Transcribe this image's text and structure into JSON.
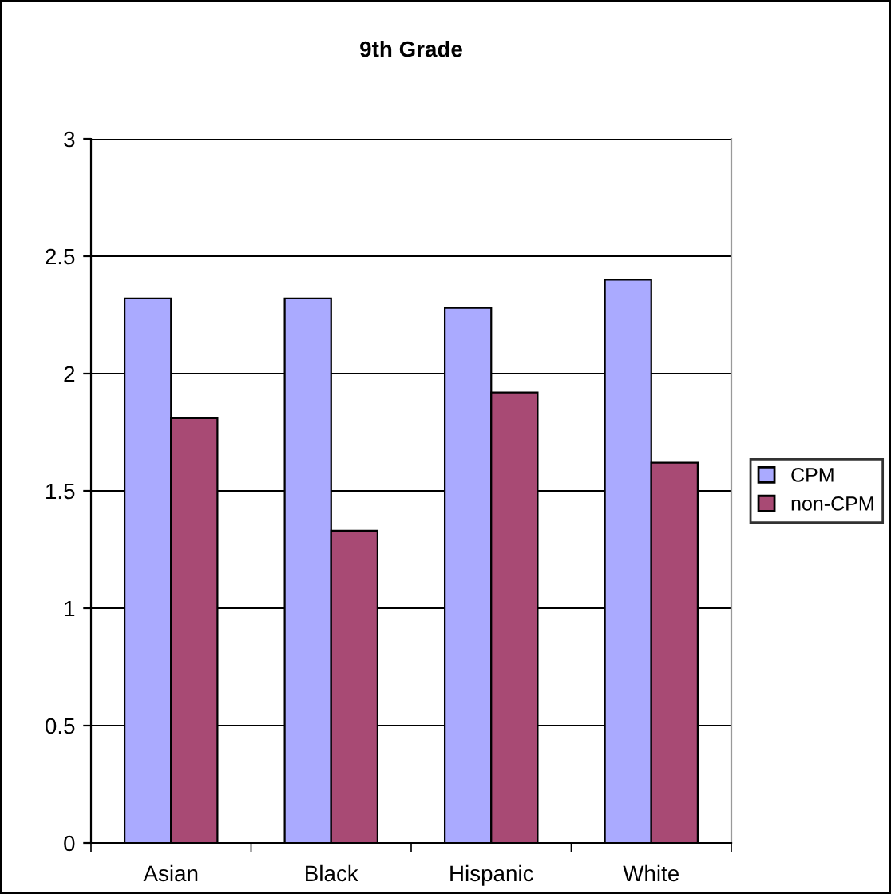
{
  "chart_data": {
    "type": "bar",
    "title": "9th Grade",
    "categories": [
      "Asian",
      "Black",
      "Hispanic",
      "White"
    ],
    "series": [
      {
        "name": "CPM",
        "color": "#aaaaff",
        "values": [
          2.32,
          2.32,
          2.28,
          2.4
        ]
      },
      {
        "name": "non-CPM",
        "color": "#a84a74",
        "values": [
          1.81,
          1.33,
          1.92,
          1.62
        ]
      }
    ],
    "ylim": [
      0,
      3
    ],
    "yticks": [
      0,
      0.5,
      1,
      1.5,
      2,
      2.5,
      3
    ],
    "grid": "y",
    "legend": "right"
  }
}
